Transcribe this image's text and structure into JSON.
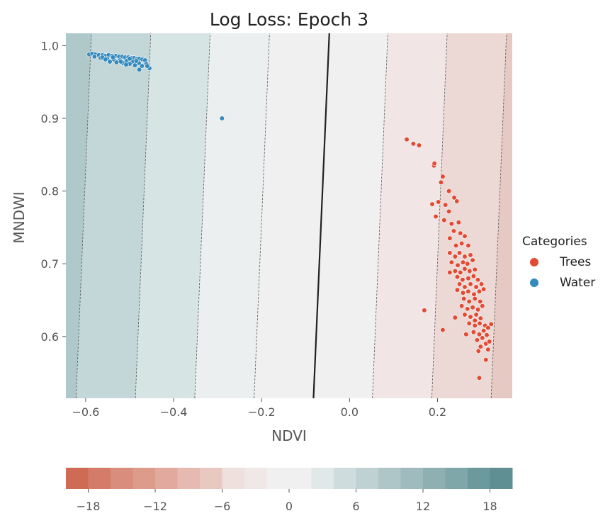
{
  "chart_data": {
    "type": "scatter",
    "title": "Log Loss: Epoch    3",
    "xlabel": "NDVI",
    "ylabel": "MNDWI",
    "xlim": [
      -0.645,
      0.37
    ],
    "ylim": [
      0.515,
      1.017
    ],
    "xticks": [
      -0.6,
      -0.4,
      -0.2,
      0.0,
      0.2
    ],
    "xtick_labels": [
      "−0.6",
      "−0.4",
      "−0.2",
      "0.0",
      "0.2"
    ],
    "yticks": [
      0.6,
      0.7,
      0.8,
      0.9,
      1.0
    ],
    "ytick_labels": [
      "0.6",
      "0.7",
      "0.8",
      "0.9",
      "1.0"
    ],
    "grid": false,
    "decision_boundary": {
      "x1": -0.082,
      "y1": 0.515,
      "x2": -0.046,
      "y2": 1.017,
      "color": "#222222"
    },
    "contour_lines": [
      [
        -0.622,
        0.515,
        -0.587,
        1.017
      ],
      [
        -0.487,
        0.515,
        -0.452,
        1.017
      ],
      [
        -0.352,
        0.515,
        -0.317,
        1.017
      ],
      [
        -0.217,
        0.515,
        -0.182,
        1.017
      ],
      [
        0.052,
        0.515,
        0.087,
        1.017
      ],
      [
        0.187,
        0.515,
        0.222,
        1.017
      ],
      [
        0.322,
        0.515,
        0.357,
        1.017
      ]
    ],
    "band_colors": [
      "#afc9cb",
      "#c3d7d8",
      "#d7e4e4",
      "#ebefef",
      "#f0f0f0",
      "#f0f0f0",
      "#f1e6e5",
      "#ecd8d5",
      "#e6c9c3",
      "#e3bdb3"
    ],
    "legend": {
      "title": "Categories",
      "placement": "right",
      "entries": [
        {
          "label": "Trees",
          "color": "#e24a33"
        },
        {
          "label": "Water",
          "color": "#348abd"
        }
      ]
    },
    "series": [
      {
        "name": "Trees",
        "color": "#e24a33",
        "points": [
          [
            0.13,
            0.871
          ],
          [
            0.145,
            0.865
          ],
          [
            0.158,
            0.863
          ],
          [
            0.192,
            0.835
          ],
          [
            0.193,
            0.838
          ],
          [
            0.212,
            0.82
          ],
          [
            0.208,
            0.812
          ],
          [
            0.226,
            0.8
          ],
          [
            0.238,
            0.791
          ],
          [
            0.188,
            0.782
          ],
          [
            0.202,
            0.785
          ],
          [
            0.218,
            0.781
          ],
          [
            0.244,
            0.786
          ],
          [
            0.226,
            0.772
          ],
          [
            0.196,
            0.765
          ],
          [
            0.215,
            0.76
          ],
          [
            0.232,
            0.755
          ],
          [
            0.248,
            0.757
          ],
          [
            0.237,
            0.745
          ],
          [
            0.228,
            0.735
          ],
          [
            0.252,
            0.742
          ],
          [
            0.262,
            0.738
          ],
          [
            0.242,
            0.725
          ],
          [
            0.255,
            0.728
          ],
          [
            0.27,
            0.725
          ],
          [
            0.228,
            0.715
          ],
          [
            0.24,
            0.71
          ],
          [
            0.25,
            0.715
          ],
          [
            0.262,
            0.71
          ],
          [
            0.275,
            0.712
          ],
          [
            0.232,
            0.702
          ],
          [
            0.246,
            0.698
          ],
          [
            0.258,
            0.702
          ],
          [
            0.268,
            0.7
          ],
          [
            0.28,
            0.705
          ],
          [
            0.24,
            0.69
          ],
          [
            0.252,
            0.688
          ],
          [
            0.262,
            0.693
          ],
          [
            0.273,
            0.69
          ],
          [
            0.285,
            0.692
          ],
          [
            0.228,
            0.688
          ],
          [
            0.245,
            0.682
          ],
          [
            0.257,
            0.678
          ],
          [
            0.27,
            0.68
          ],
          [
            0.282,
            0.683
          ],
          [
            0.292,
            0.678
          ],
          [
            0.25,
            0.672
          ],
          [
            0.262,
            0.668
          ],
          [
            0.275,
            0.672
          ],
          [
            0.288,
            0.668
          ],
          [
            0.3,
            0.672
          ],
          [
            0.245,
            0.664
          ],
          [
            0.258,
            0.66
          ],
          [
            0.27,
            0.662
          ],
          [
            0.283,
            0.658
          ],
          [
            0.295,
            0.662
          ],
          [
            0.305,
            0.665
          ],
          [
            0.26,
            0.652
          ],
          [
            0.272,
            0.648
          ],
          [
            0.285,
            0.652
          ],
          [
            0.297,
            0.648
          ],
          [
            0.255,
            0.642
          ],
          [
            0.268,
            0.638
          ],
          [
            0.28,
            0.64
          ],
          [
            0.292,
            0.637
          ],
          [
            0.302,
            0.642
          ],
          [
            0.262,
            0.63
          ],
          [
            0.275,
            0.627
          ],
          [
            0.288,
            0.63
          ],
          [
            0.298,
            0.625
          ],
          [
            0.272,
            0.618
          ],
          [
            0.285,
            0.615
          ],
          [
            0.296,
            0.618
          ],
          [
            0.308,
            0.615
          ],
          [
            0.282,
            0.606
          ],
          [
            0.295,
            0.603
          ],
          [
            0.305,
            0.608
          ],
          [
            0.315,
            0.612
          ],
          [
            0.29,
            0.595
          ],
          [
            0.302,
            0.598
          ],
          [
            0.312,
            0.602
          ],
          [
            0.298,
            0.586
          ],
          [
            0.31,
            0.59
          ],
          [
            0.315,
            0.582
          ],
          [
            0.318,
            0.593
          ],
          [
            0.293,
            0.58
          ],
          [
            0.31,
            0.568
          ],
          [
            0.295,
            0.543
          ],
          [
            0.17,
            0.636
          ],
          [
            0.212,
            0.609
          ],
          [
            0.24,
            0.626
          ],
          [
            0.265,
            0.603
          ],
          [
            0.285,
            0.622
          ],
          [
            0.322,
            0.617
          ]
        ]
      },
      {
        "name": "Water",
        "color": "#348abd",
        "points": [
          [
            -0.29,
            0.9
          ],
          [
            -0.592,
            0.988
          ],
          [
            -0.585,
            0.989
          ],
          [
            -0.578,
            0.988
          ],
          [
            -0.57,
            0.987
          ],
          [
            -0.562,
            0.987
          ],
          [
            -0.555,
            0.986
          ],
          [
            -0.548,
            0.987
          ],
          [
            -0.54,
            0.986
          ],
          [
            -0.532,
            0.986
          ],
          [
            -0.524,
            0.985
          ],
          [
            -0.517,
            0.985
          ],
          [
            -0.51,
            0.984
          ],
          [
            -0.503,
            0.984
          ],
          [
            -0.496,
            0.983
          ],
          [
            -0.49,
            0.983
          ],
          [
            -0.484,
            0.982
          ],
          [
            -0.478,
            0.982
          ],
          [
            -0.471,
            0.981
          ],
          [
            -0.465,
            0.98
          ],
          [
            -0.58,
            0.985
          ],
          [
            -0.566,
            0.983
          ],
          [
            -0.551,
            0.982
          ],
          [
            -0.536,
            0.981
          ],
          [
            -0.522,
            0.98
          ],
          [
            -0.507,
            0.979
          ],
          [
            -0.493,
            0.978
          ],
          [
            -0.479,
            0.976
          ],
          [
            -0.545,
            0.978
          ],
          [
            -0.53,
            0.977
          ],
          [
            -0.515,
            0.976
          ],
          [
            -0.5,
            0.975
          ],
          [
            -0.488,
            0.973
          ],
          [
            -0.472,
            0.972
          ],
          [
            -0.462,
            0.975
          ],
          [
            -0.455,
            0.969
          ],
          [
            -0.478,
            0.967
          ],
          [
            -0.46,
            0.972
          ],
          [
            -0.508,
            0.974
          ],
          [
            -0.538,
            0.984
          ],
          [
            -0.562,
            0.984
          ],
          [
            -0.5,
            0.982
          ],
          [
            -0.52,
            0.978
          ],
          [
            -0.485,
            0.979
          ],
          [
            -0.555,
            0.981
          ]
        ]
      }
    ],
    "colorbar": {
      "ticks": [
        -18,
        -12,
        -6,
        0,
        6,
        12,
        18
      ],
      "tick_labels": [
        "−18",
        "−12",
        "−6",
        "0",
        "6",
        "12",
        "18"
      ],
      "min": -20,
      "max": 20,
      "levels": [
        -20,
        -18,
        -16,
        -14,
        -12,
        -10,
        -8,
        -6,
        -4,
        -2,
        2,
        4,
        6,
        8,
        10,
        12,
        14,
        16,
        18,
        20
      ],
      "colors": [
        "#cf6a55",
        "#d47c69",
        "#d98d7c",
        "#dd9b8c",
        "#e2aa9e",
        "#e6bab0",
        "#e9c8c1",
        "#ede0dd",
        "#efe8e6",
        "#f0f0f0",
        "#e0e8e8",
        "#cfdcde",
        "#bfd1d3",
        "#afc6c8",
        "#a0bbbe",
        "#8fb0b3",
        "#7fa6a8",
        "#6c9a9c",
        "#5f8f92"
      ]
    }
  }
}
